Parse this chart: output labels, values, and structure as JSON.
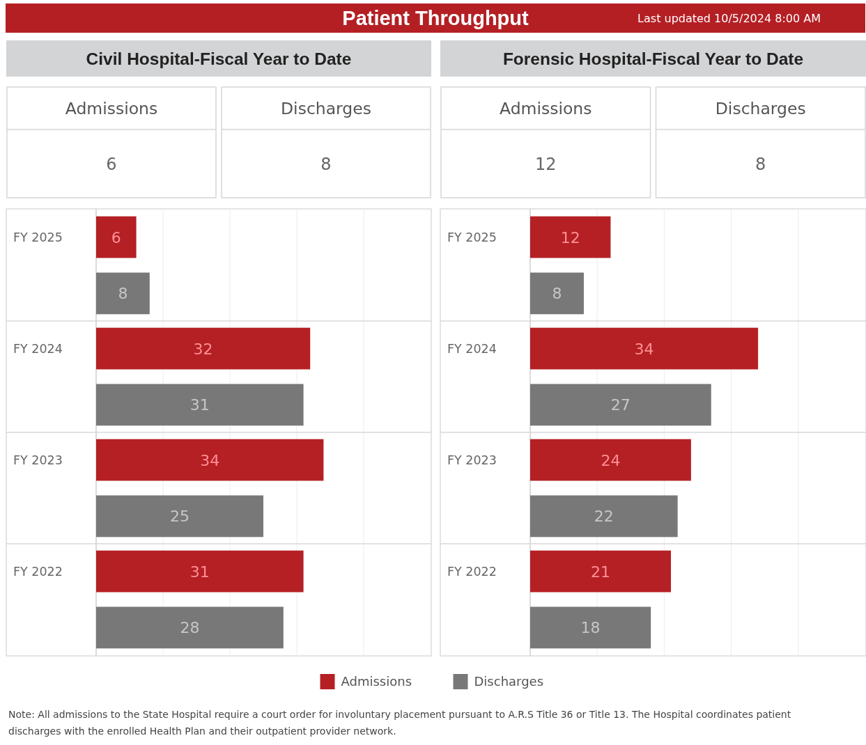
{
  "chart_data": [
    {
      "type": "other",
      "title": "Patient Throughput",
      "subtitle": "Last updated 10/5/2024 8:00 AM"
    },
    {
      "type": "other",
      "title": "Civil Hospital-Fiscal Year to Date",
      "categories": [
        "Admissions",
        "Discharges"
      ],
      "values": [
        6,
        8
      ],
      "data_labels": true
    },
    {
      "type": "bar",
      "orientation": "horizontal",
      "categories": [
        "FY 2025",
        "FY 2024",
        "FY 2023",
        "FY 2022"
      ],
      "series": [
        {
          "color": "#b52025",
          "values": [
            6,
            32,
            34,
            31
          ]
        },
        {
          "color": "#787878",
          "values": [
            8,
            31,
            25,
            28
          ]
        }
      ],
      "xlim": [
        0,
        50
      ],
      "xticks": [
        {
          "value": 10,
          "label": null
        },
        {
          "value": 20,
          "label": null
        },
        {
          "value": 30,
          "label": null
        },
        {
          "value": 40,
          "label": null
        }
      ],
      "grid": "x",
      "tick_labels": "y",
      "data_labels": true
    },
    {
      "type": "other",
      "title": "Forensic Hospital-Fiscal Year to Date",
      "categories": [
        "Admissions",
        "Discharges"
      ],
      "values": [
        12,
        8
      ],
      "data_labels": true
    },
    {
      "type": "bar",
      "orientation": "horizontal",
      "categories": [
        "FY 2025",
        "FY 2024",
        "FY 2023",
        "FY 2022"
      ],
      "series": [
        {
          "name": "Admissions",
          "color": "#b52025",
          "values": [
            12,
            34,
            24,
            21
          ]
        },
        {
          "name": "Discharges",
          "color": "#787878",
          "values": [
            8,
            27,
            22,
            18
          ]
        }
      ],
      "xlim": [
        0,
        50
      ],
      "xticks": [
        {
          "value": 10,
          "label": null
        },
        {
          "value": 20,
          "label": null
        },
        {
          "value": 30,
          "label": null
        },
        {
          "value": 40,
          "label": null
        }
      ],
      "grid": "x",
      "tick_labels": "y",
      "data_labels": true,
      "legend": "bottom"
    },
    {
      "type": "other",
      "annotations": [
        "Note: All admissions to the State Hospital require a court order for involuntary placement pursuant to A.R.S Title 36 or Title 13. The Hospital coordinates patient discharges with the enrolled Health Plan and their outpatient provider network."
      ]
    }
  ]
}
